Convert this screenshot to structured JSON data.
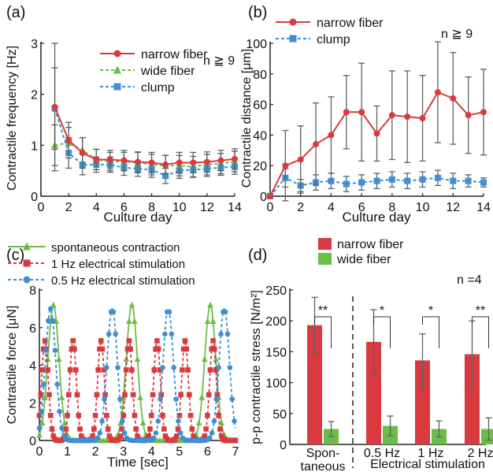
{
  "colors": {
    "red": "#d93a3f",
    "green": "#6cbd45",
    "blue": "#3f8fd2",
    "errbar": "#5a6461",
    "axis": "#222222"
  },
  "chart_data": [
    {
      "panel": "(a)",
      "type": "line",
      "note": "n ≧ 9",
      "xlabel": "Culture day",
      "ylabel": "Contractile frequency [Hz]",
      "xlim": [
        0,
        14
      ],
      "ylim": [
        0,
        3
      ],
      "xticks": [
        0,
        2,
        4,
        6,
        8,
        10,
        12,
        14
      ],
      "yticks": [
        0,
        1,
        2,
        3
      ],
      "legend_position": "top-right",
      "x": [
        1,
        2,
        3,
        4,
        5,
        6,
        7,
        8,
        9,
        10,
        11,
        12,
        13,
        14
      ],
      "series": [
        {
          "name": "narrow fiber",
          "color": "#d93a3f",
          "marker": "circle",
          "dash": "solid",
          "values": [
            1.75,
            1.1,
            0.85,
            0.72,
            0.72,
            0.7,
            0.67,
            0.66,
            0.62,
            0.66,
            0.66,
            0.67,
            0.7,
            0.73
          ],
          "errors": [
            1.25,
            0.35,
            0.3,
            0.2,
            0.18,
            0.2,
            0.2,
            0.2,
            0.18,
            0.2,
            0.2,
            0.2,
            0.2,
            0.2
          ]
        },
        {
          "name": "wide fiber",
          "color": "#6cbd45",
          "marker": "triangle",
          "dash": "dashed",
          "values": [
            1.0,
            1.05,
            0.9,
            0.72,
            0.68,
            0.68,
            0.66,
            0.62,
            0.6,
            0.6,
            0.58,
            0.62,
            0.64,
            0.68
          ],
          "errors": [
            0.4,
            0.3,
            0.25,
            0.2,
            0.18,
            0.18,
            0.2,
            0.2,
            0.2,
            0.2,
            0.2,
            0.2,
            0.2,
            0.2
          ]
        },
        {
          "name": "clump",
          "color": "#3f8fd2",
          "marker": "square",
          "dash": "dashed",
          "values": [
            1.72,
            0.85,
            0.62,
            0.62,
            0.62,
            0.56,
            0.54,
            0.52,
            0.4,
            0.5,
            0.52,
            0.54,
            0.56,
            0.58
          ],
          "errors": [
            0.8,
            0.3,
            0.2,
            0.15,
            0.15,
            0.15,
            0.15,
            0.15,
            0.15,
            0.15,
            0.15,
            0.15,
            0.15,
            0.15
          ]
        }
      ]
    },
    {
      "panel": "(b)",
      "type": "line",
      "note": "n ≧ 9",
      "xlabel": "Culture day",
      "ylabel": "Contractile distance [μm]",
      "xlim": [
        0,
        14
      ],
      "ylim": [
        0,
        100
      ],
      "xticks": [
        0,
        2,
        4,
        6,
        8,
        10,
        12,
        14
      ],
      "yticks": [
        0,
        20,
        40,
        60,
        80,
        100
      ],
      "legend_position": "top-left",
      "x": [
        0,
        1,
        2,
        3,
        4,
        5,
        6,
        7,
        8,
        9,
        10,
        11,
        12,
        13,
        14
      ],
      "series": [
        {
          "name": "narrow fiber",
          "color": "#d93a3f",
          "marker": "circle",
          "dash": "solid",
          "values": [
            0,
            20,
            24,
            34,
            40,
            55,
            55,
            41,
            53,
            52,
            51,
            68,
            64,
            53,
            55
          ],
          "errors": [
            0,
            23,
            22,
            27,
            25,
            24,
            32,
            18,
            29,
            30,
            28,
            33,
            30,
            25,
            28
          ]
        },
        {
          "name": "clump",
          "color": "#3f8fd2",
          "marker": "square",
          "dash": "dashed",
          "values": [
            0,
            12,
            7,
            9,
            10,
            8,
            9,
            10,
            11,
            10,
            11,
            12,
            10,
            10,
            9
          ],
          "errors": [
            0,
            6,
            4,
            5,
            5,
            5,
            5,
            5,
            5,
            5,
            5,
            5,
            5,
            4,
            3
          ]
        }
      ]
    },
    {
      "panel": "(c)",
      "type": "line",
      "xlabel": "Time [sec]",
      "ylabel": "Contractile force [μN]",
      "xlim": [
        0,
        7
      ],
      "ylim": [
        0,
        8
      ],
      "xticks": [
        0,
        1,
        2,
        3,
        4,
        5,
        6,
        7
      ],
      "yticks": [
        0,
        2,
        4,
        6,
        8
      ],
      "legend_position": "top",
      "series": [
        {
          "name": "spontaneous contraction",
          "color": "#6cbd45",
          "marker": "triangle",
          "dash": "solid",
          "peaks": [
            0.5,
            3.3,
            6.1
          ],
          "amplitude": 7.2,
          "width": 0.28,
          "sample_step": 0.1
        },
        {
          "name": "1 Hz electrical stimulation",
          "color": "#d93a3f",
          "marker": "square",
          "dash": "dashed",
          "peaks": [
            0.2,
            1.2,
            2.2,
            3.2,
            4.2,
            5.2,
            6.2
          ],
          "amplitude": 5.3,
          "width": 0.17,
          "sample_step": 0.05
        },
        {
          "name": "0.5 Hz electrical stimulation",
          "color": "#3f8fd2",
          "marker": "circle",
          "dash": "dashed",
          "peaks": [
            0.4,
            2.6,
            4.6,
            6.6
          ],
          "amplitude": 7.0,
          "width": 0.26,
          "sample_step": 0.08
        }
      ]
    },
    {
      "panel": "(d)",
      "type": "bar",
      "note": "n =4",
      "ylabel": "p-p contractile stress [N/m²]",
      "ylim": [
        0,
        250
      ],
      "yticks": [
        0,
        50,
        100,
        150,
        200,
        250
      ],
      "legend_position": "top-left",
      "categories": [
        "Spon-taneous",
        "0.5 Hz",
        "1 Hz",
        "2 Hz"
      ],
      "category_lines": [
        [
          "Spon-",
          "taneous"
        ],
        [
          "0.5 Hz"
        ],
        [
          "1 Hz"
        ],
        [
          "2 Hz"
        ]
      ],
      "group_label": "Electrical stimulation",
      "significance": [
        "**",
        "*",
        "*",
        "**"
      ],
      "series": [
        {
          "name": "narrow fiber",
          "color": "#d93a3f",
          "values": [
            193,
            166,
            136,
            146
          ],
          "errors": [
            45,
            52,
            43,
            54
          ]
        },
        {
          "name": "wide fiber",
          "color": "#6cbd45",
          "values": [
            25,
            30,
            25,
            25
          ],
          "errors": [
            12,
            16,
            13,
            18
          ]
        }
      ]
    }
  ]
}
